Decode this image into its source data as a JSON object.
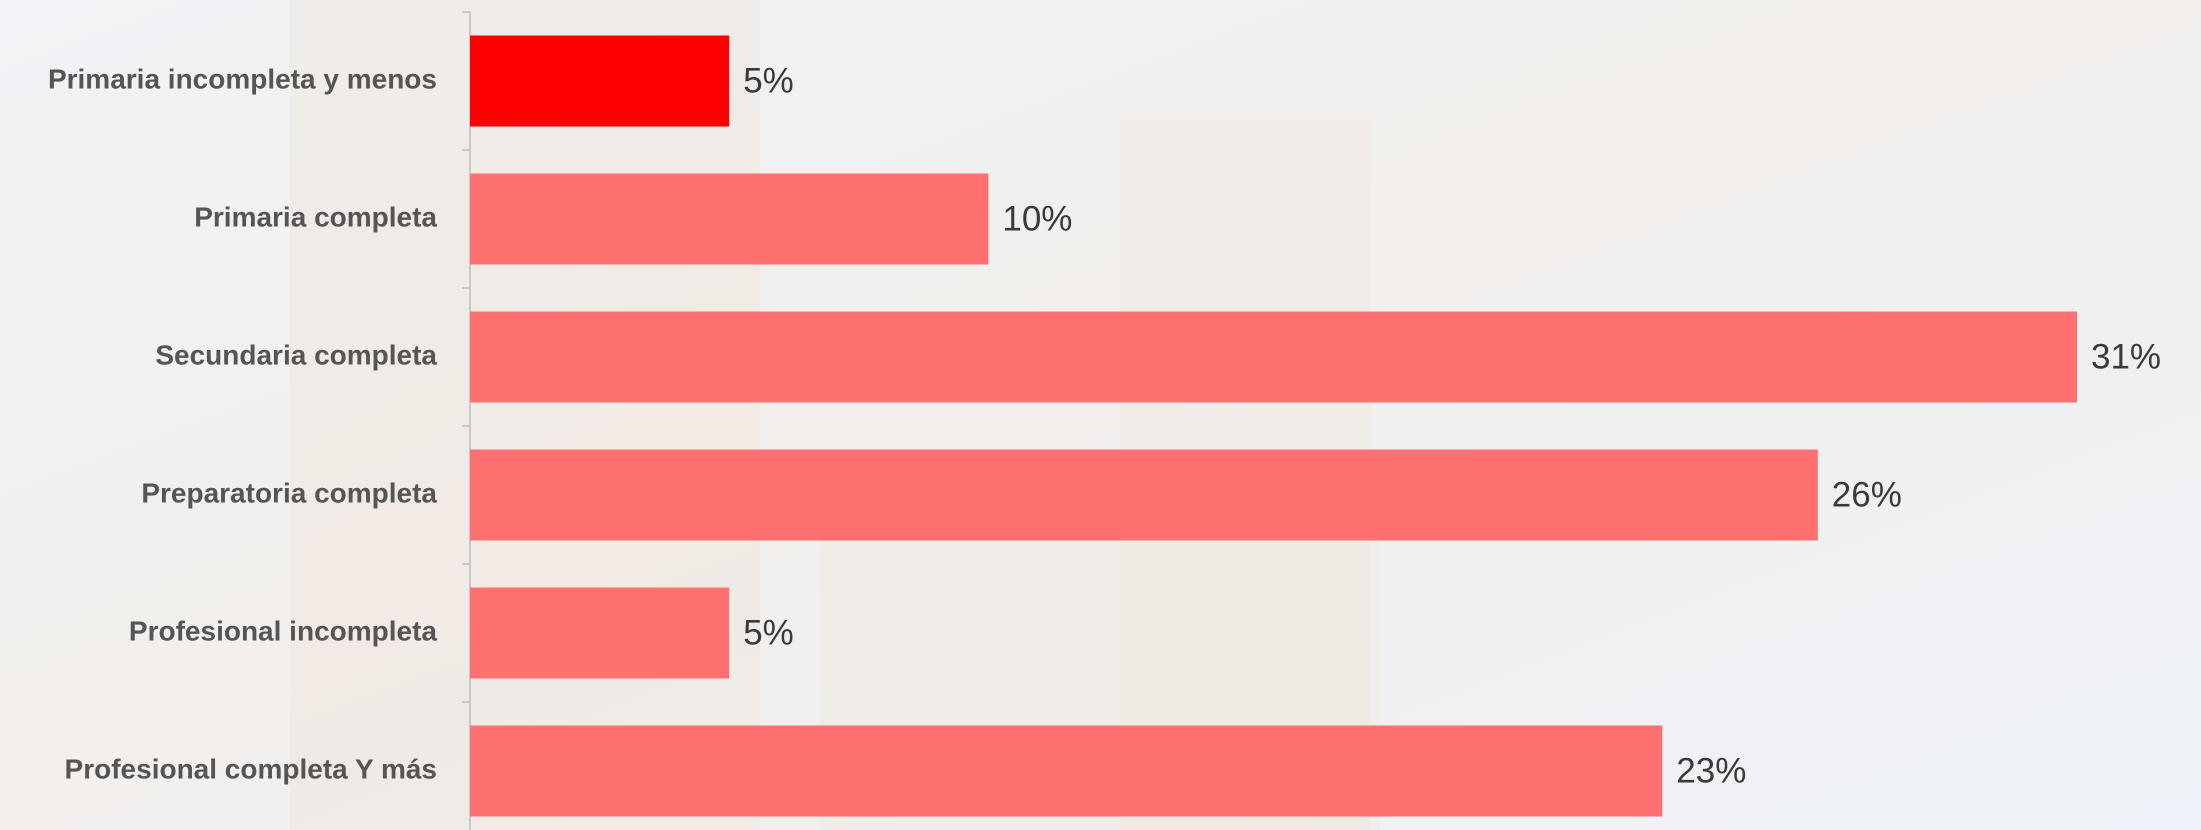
{
  "chart_data": {
    "type": "barh",
    "categories": [
      "Primaria incompleta y menos",
      "Primaria completa",
      "Secundaria completa",
      "Preparatoria completa",
      "Profesional incompleta",
      "Profesional completa Y más"
    ],
    "values": [
      5,
      10,
      31,
      26,
      5,
      23
    ],
    "value_labels": [
      "5%",
      "10%",
      "31%",
      "26%",
      "5%",
      "23%"
    ],
    "colors": [
      "#ff0000",
      "#ff7070",
      "#ff7070",
      "#ff7070",
      "#ff7070",
      "#ff7070"
    ]
  }
}
